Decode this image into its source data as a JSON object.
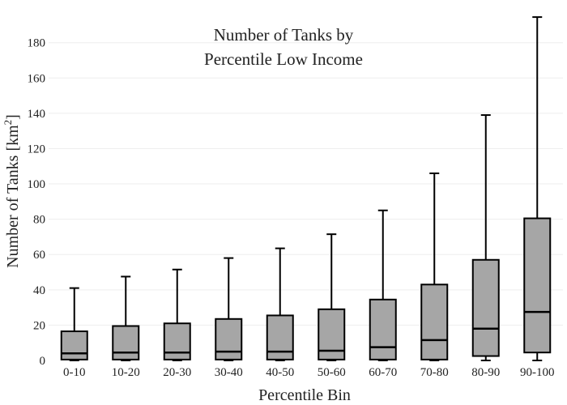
{
  "chart_data": {
    "type": "box",
    "title_lines": [
      "Number of Tanks by",
      "Percentile Low Income"
    ],
    "xlabel": "Percentile Bin",
    "ylabel_main": "Number of Tanks  [km",
    "ylabel_sup": "2",
    "ylabel_end": "]",
    "ylim": [
      0,
      195
    ],
    "yticks": [
      0,
      20,
      40,
      60,
      80,
      100,
      120,
      140,
      160,
      180
    ],
    "grid": true,
    "colors": {
      "box_fill": "#a6a6a6",
      "box_stroke": "#000000",
      "grid": "#eeeeee"
    },
    "categories": [
      "0-10",
      "10-20",
      "20-30",
      "30-40",
      "40-50",
      "50-60",
      "60-70",
      "70-80",
      "80-90",
      "90-100"
    ],
    "boxes": [
      {
        "min": 0,
        "q1": 0.5,
        "median": 4,
        "q3": 16.5,
        "max": 41
      },
      {
        "min": 0,
        "q1": 0.5,
        "median": 4.5,
        "q3": 19.5,
        "max": 47.5
      },
      {
        "min": 0,
        "q1": 0.5,
        "median": 4.5,
        "q3": 21,
        "max": 51.5
      },
      {
        "min": 0,
        "q1": 0.5,
        "median": 5,
        "q3": 23.5,
        "max": 58
      },
      {
        "min": 0,
        "q1": 0.5,
        "median": 5,
        "q3": 25.5,
        "max": 63.5
      },
      {
        "min": 0,
        "q1": 0.5,
        "median": 5.5,
        "q3": 29,
        "max": 71.5
      },
      {
        "min": 0,
        "q1": 0.5,
        "median": 7.5,
        "q3": 34.5,
        "max": 85
      },
      {
        "min": 0,
        "q1": 0.5,
        "median": 11.5,
        "q3": 43,
        "max": 106
      },
      {
        "min": 0,
        "q1": 2.5,
        "median": 18,
        "q3": 57,
        "max": 139
      },
      {
        "min": 0,
        "q1": 4.5,
        "median": 27.5,
        "q3": 80.5,
        "max": 194.5
      }
    ]
  }
}
